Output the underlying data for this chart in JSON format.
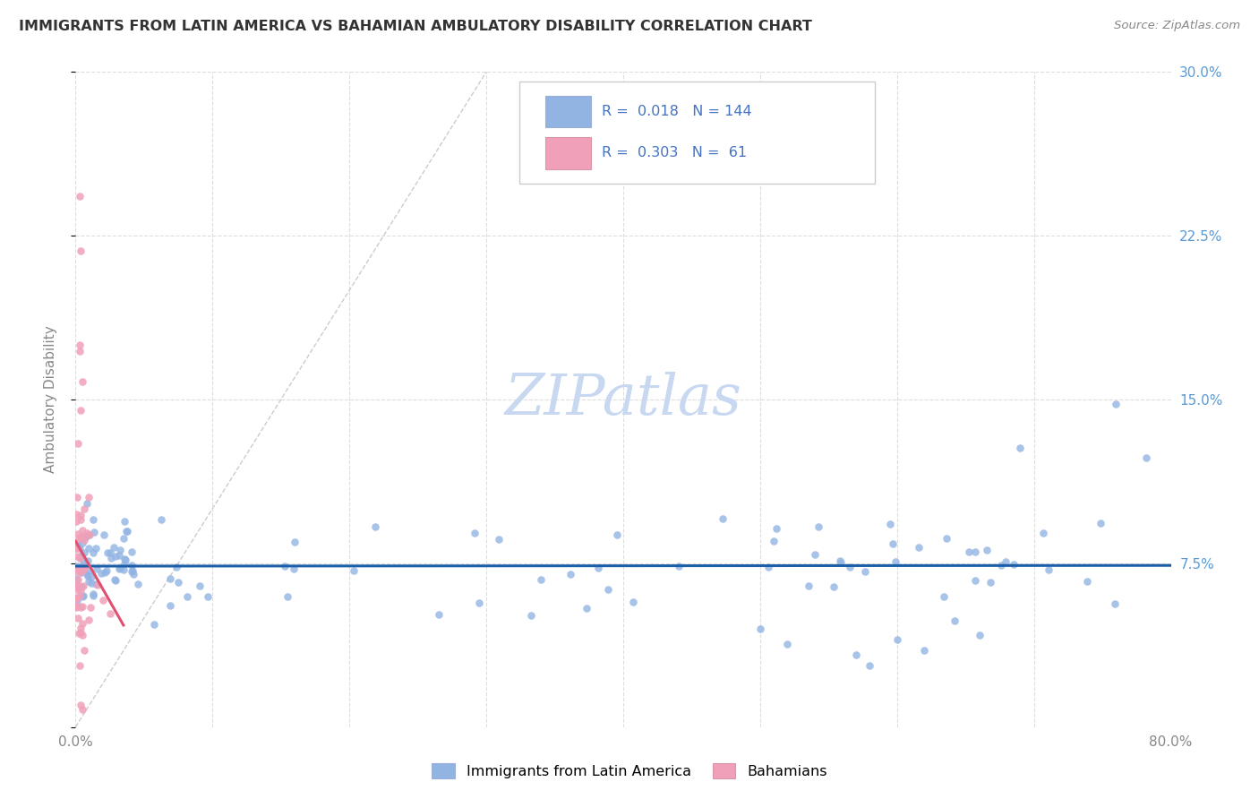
{
  "title": "IMMIGRANTS FROM LATIN AMERICA VS BAHAMIAN AMBULATORY DISABILITY CORRELATION CHART",
  "source": "Source: ZipAtlas.com",
  "ylabel": "Ambulatory Disability",
  "xlim": [
    0.0,
    0.8
  ],
  "ylim": [
    0.0,
    0.3
  ],
  "legend_blue_R": "0.018",
  "legend_blue_N": "144",
  "legend_pink_R": "0.303",
  "legend_pink_N": "61",
  "blue_color": "#92b4e3",
  "pink_color": "#f0a0b8",
  "blue_line_color": "#1a5fa8",
  "pink_line_color": "#e05070",
  "diagonal_line_color": "#cccccc",
  "background_color": "#ffffff",
  "grid_color": "#dddddd",
  "right_tick_color": "#5b9bd5",
  "title_color": "#333333",
  "source_color": "#888888",
  "ylabel_color": "#888888",
  "watermark_color": "#c8d8f0"
}
